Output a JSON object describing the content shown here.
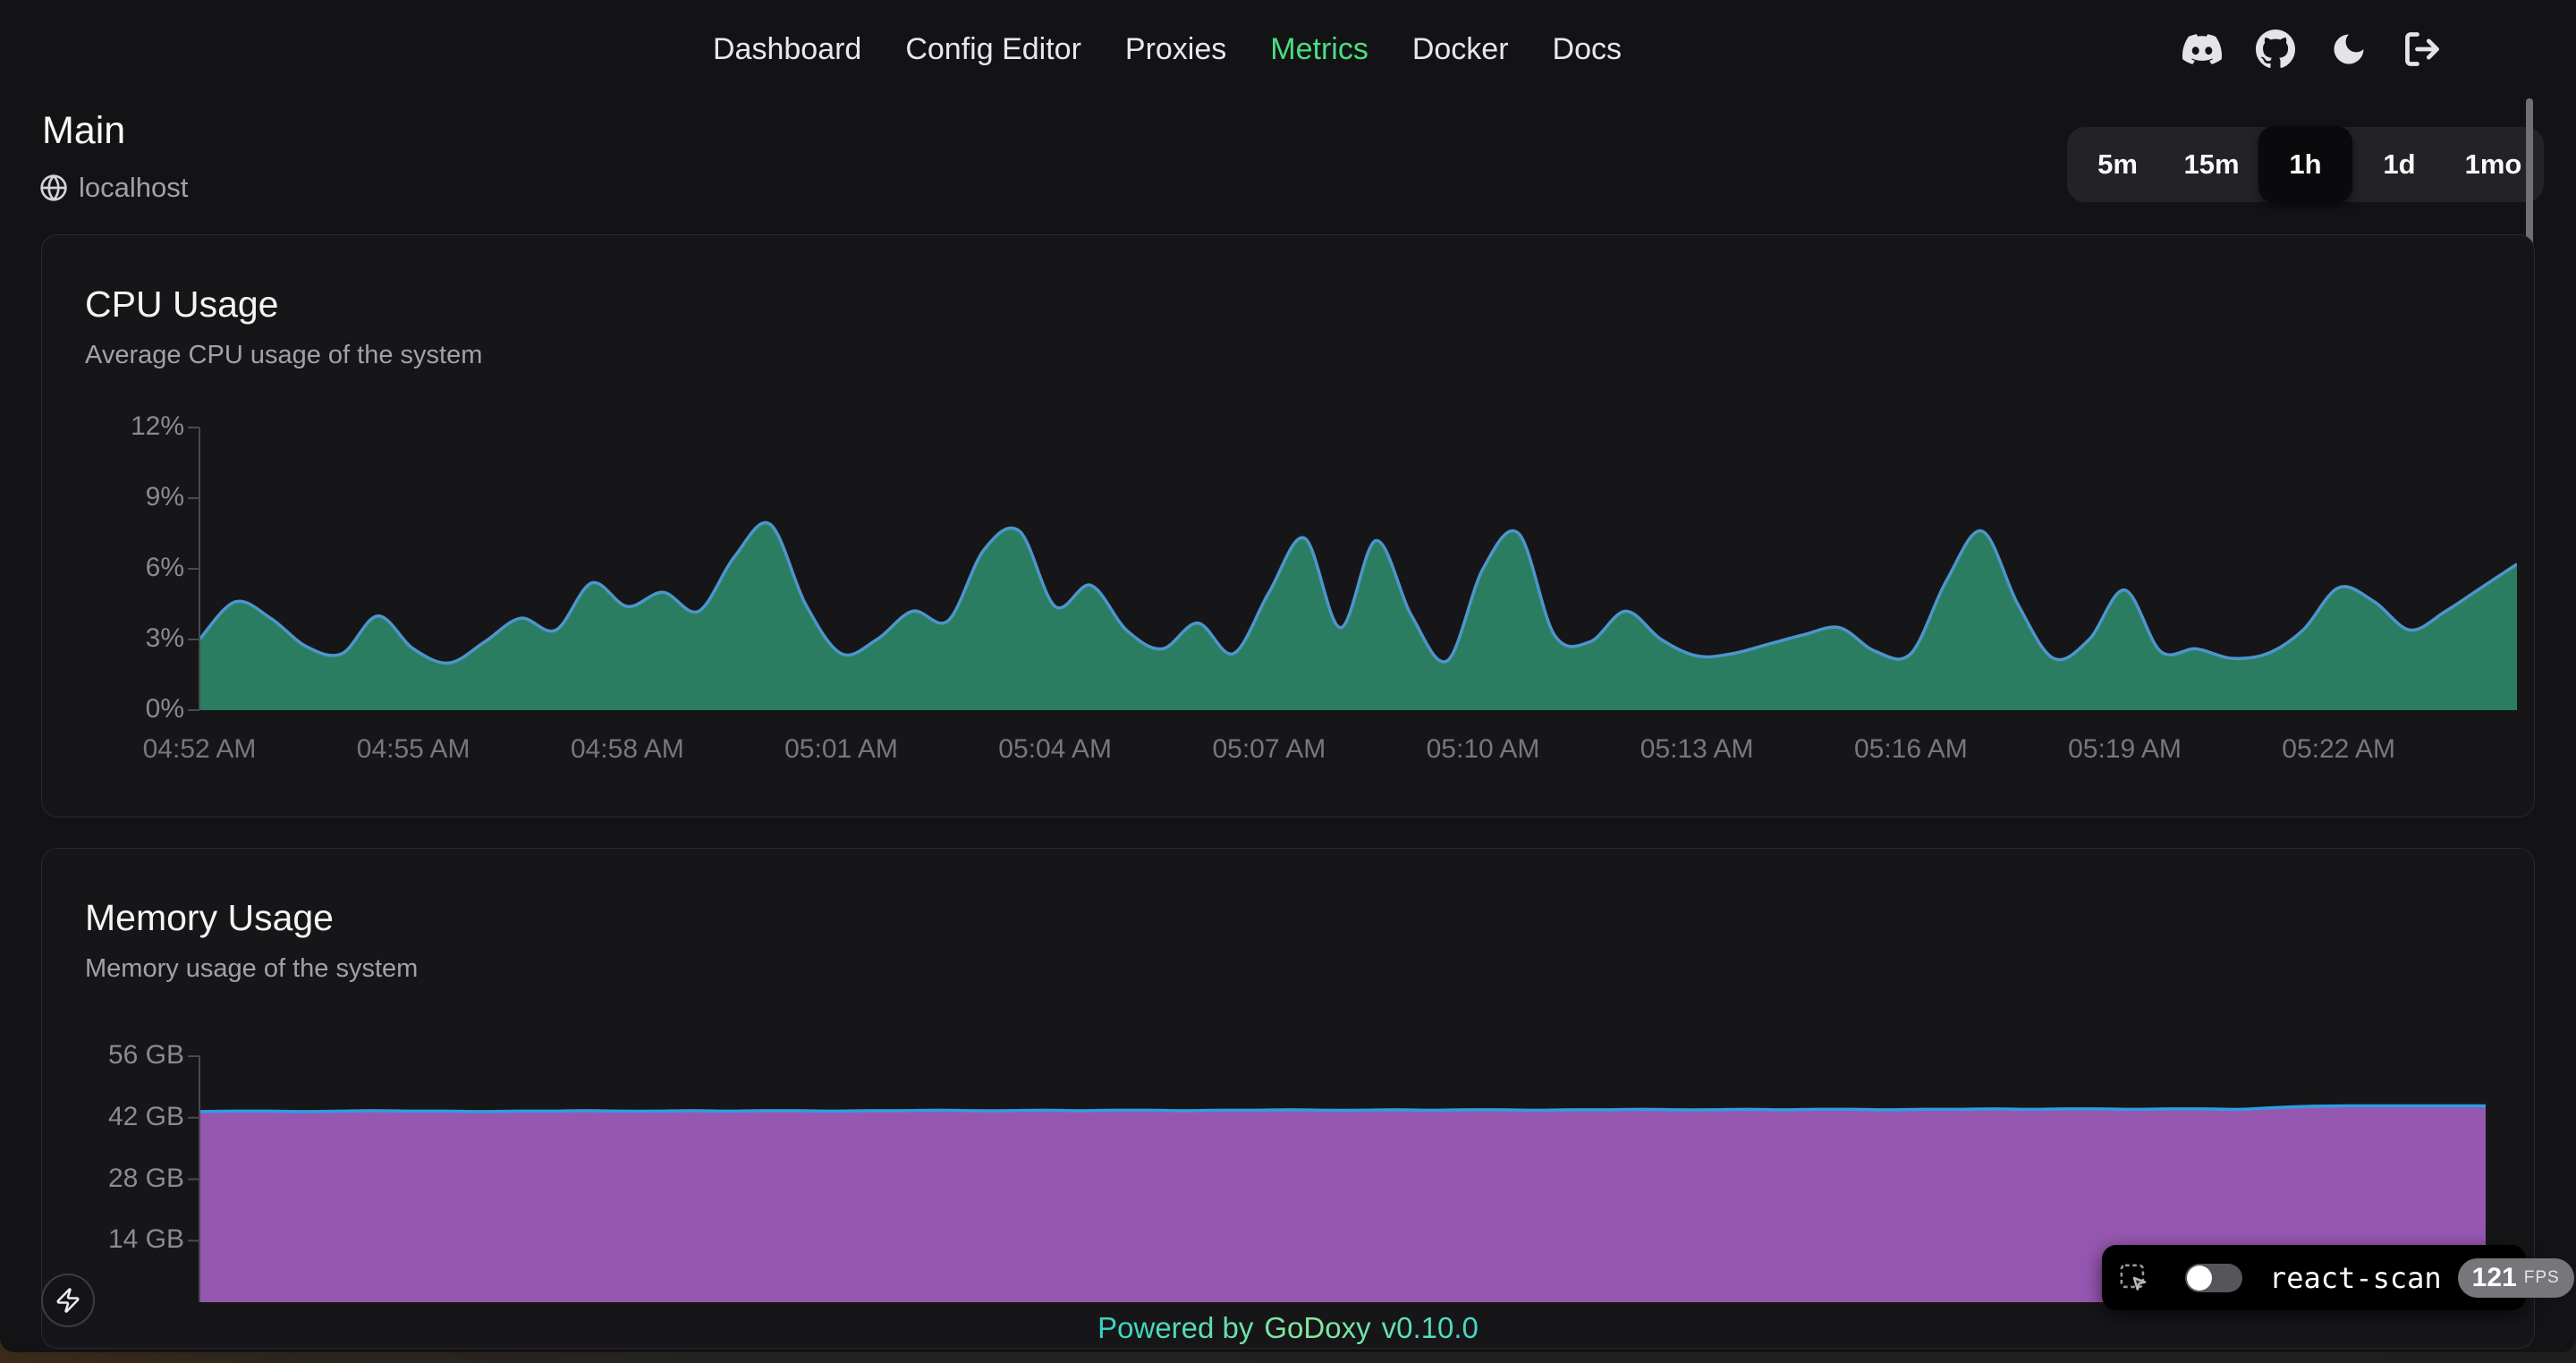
{
  "nav": {
    "items": [
      {
        "label": "Dashboard",
        "active": false
      },
      {
        "label": "Config Editor",
        "active": false
      },
      {
        "label": "Proxies",
        "active": false
      },
      {
        "label": "Metrics",
        "active": true
      },
      {
        "label": "Docker",
        "active": false
      },
      {
        "label": "Docs",
        "active": false
      }
    ],
    "active_color": "#4ade80"
  },
  "page": {
    "title": "Main",
    "host": "localhost",
    "time_ranges": [
      "5m",
      "15m",
      "1h",
      "1d",
      "1mo"
    ],
    "selected_time_range": "1h"
  },
  "footer": {
    "powered_by": "Powered by",
    "brand": "GoDoxy",
    "version": "v0.10.0"
  },
  "react_scan": {
    "label": "react-scan",
    "fps": "121",
    "fps_unit": "FPS"
  },
  "colors": {
    "page_bg": "#131316",
    "card_bg": "#161619",
    "card_border": "#29292e",
    "nav_active": "#4ade80",
    "cpu_fill": "#2b7d61",
    "cpu_stroke": "#4d95cc",
    "memory_fill": "#9657b1",
    "memory_stroke": "#2d9ee0",
    "axis": "#4a4a50",
    "tick_label": "#8a8a90"
  },
  "chart_data": [
    {
      "id": "cpu",
      "type": "area",
      "title": "CPU Usage",
      "subtitle": "Average CPU usage of the system",
      "unit": "%",
      "ylim": [
        0,
        12
      ],
      "y_ticks": [
        {
          "v": 0,
          "label": "0%"
        },
        {
          "v": 3,
          "label": "3%"
        },
        {
          "v": 6,
          "label": "6%"
        },
        {
          "v": 9,
          "label": "9%"
        },
        {
          "v": 12,
          "label": "12%"
        }
      ],
      "x_ticks": [
        {
          "m": 0,
          "label": "04:52 AM"
        },
        {
          "m": 3,
          "label": "04:55 AM"
        },
        {
          "m": 6,
          "label": "04:58 AM"
        },
        {
          "m": 9,
          "label": "05:01 AM"
        },
        {
          "m": 12,
          "label": "05:04 AM"
        },
        {
          "m": 15,
          "label": "05:07 AM"
        },
        {
          "m": 18,
          "label": "05:10 AM"
        },
        {
          "m": 21,
          "label": "05:13 AM"
        },
        {
          "m": 24,
          "label": "05:16 AM"
        },
        {
          "m": 27,
          "label": "05:19 AM"
        },
        {
          "m": 30,
          "label": "05:22 AM"
        }
      ],
      "x_domain_minutes": [
        0,
        32.5
      ],
      "sample_interval_seconds": 30,
      "start_label": "04:52 AM",
      "values": [
        3.0,
        4.6,
        3.9,
        2.7,
        2.4,
        4.0,
        2.6,
        2.0,
        2.9,
        3.9,
        3.4,
        5.4,
        4.4,
        5.0,
        4.2,
        6.5,
        7.9,
        4.5,
        2.4,
        3.0,
        4.2,
        3.8,
        6.8,
        7.6,
        4.4,
        5.3,
        3.4,
        2.6,
        3.7,
        2.4,
        5.0,
        7.3,
        3.5,
        7.2,
        4.0,
        2.1,
        6.0,
        7.5,
        3.2,
        2.9,
        4.2,
        3.0,
        2.3,
        2.4,
        2.8,
        3.2,
        3.5,
        2.5,
        2.4,
        5.5,
        7.6,
        4.5,
        2.2,
        3.0,
        5.1,
        2.5,
        2.6,
        2.2,
        2.4,
        3.4,
        5.2,
        4.6,
        3.4,
        4.2,
        5.2,
        6.2
      ],
      "fill": "#2b7d61",
      "stroke": "#4d95cc"
    },
    {
      "id": "memory",
      "type": "area",
      "title": "Memory Usage",
      "subtitle": "Memory usage of the system",
      "unit": "GB",
      "ylim": [
        0,
        56
      ],
      "y_ticks": [
        {
          "v": 14,
          "label": "14 GB"
        },
        {
          "v": 28,
          "label": "28 GB"
        },
        {
          "v": 42,
          "label": "42 GB"
        },
        {
          "v": 56,
          "label": "56 GB"
        }
      ],
      "x_ticks": [],
      "x_domain_minutes": [
        0,
        32.5
      ],
      "sample_interval_seconds": 30,
      "start_label": "04:52 AM",
      "values": [
        43.4,
        43.5,
        43.5,
        43.4,
        43.5,
        43.6,
        43.5,
        43.5,
        43.4,
        43.5,
        43.5,
        43.6,
        43.5,
        43.5,
        43.6,
        43.5,
        43.6,
        43.6,
        43.5,
        43.6,
        43.6,
        43.7,
        43.6,
        43.6,
        43.7,
        43.6,
        43.7,
        43.7,
        43.6,
        43.7,
        43.7,
        43.8,
        43.7,
        43.7,
        43.8,
        43.7,
        43.8,
        43.8,
        43.7,
        43.8,
        43.8,
        43.9,
        43.8,
        43.8,
        43.9,
        43.8,
        43.9,
        43.9,
        43.8,
        43.9,
        43.9,
        44.0,
        43.9,
        44.0,
        44.0,
        43.9,
        44.0,
        44.0,
        43.9,
        44.3,
        44.6,
        44.7,
        44.7,
        44.7,
        44.7,
        44.7
      ],
      "fill": "#9657b1",
      "stroke": "#2d9ee0"
    }
  ]
}
